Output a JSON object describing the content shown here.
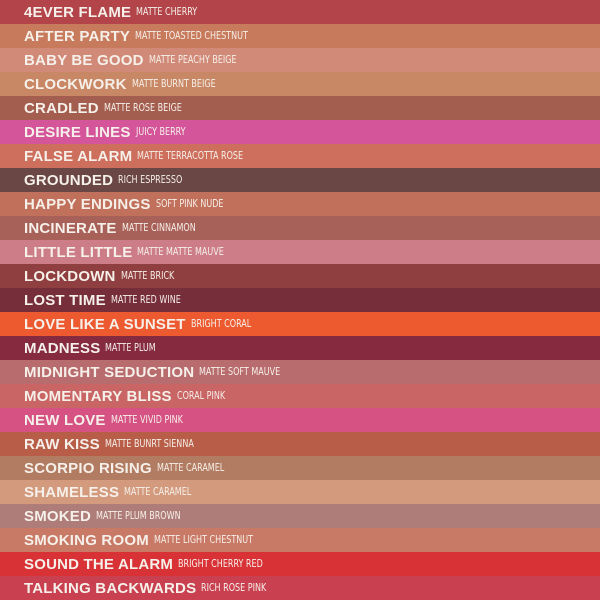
{
  "shades": [
    {
      "name": "4EVER FLAME",
      "description": "MATTE CHERRY",
      "color": "#b2444a"
    },
    {
      "name": "AFTER PARTY",
      "description": "MATTE TOASTED CHESTNUT",
      "color": "#c77a5c"
    },
    {
      "name": "BABY BE GOOD",
      "description": "MATTE PEACHY BEIGE",
      "color": "#d28a78"
    },
    {
      "name": "CLOCKWORK",
      "description": "MATTE BURNT BEIGE",
      "color": "#c98865"
    },
    {
      "name": "CRADLED",
      "description": "MATTE ROSE BEIGE",
      "color": "#a45e50"
    },
    {
      "name": "DESIRE LINES",
      "description": "JUICY BERRY",
      "color": "#d5559a"
    },
    {
      "name": "FALSE ALARM",
      "description": "MATTE TERRACOTTA ROSE",
      "color": "#cd6f5c"
    },
    {
      "name": "GROUNDED",
      "description": "RICH ESPRESSO",
      "color": "#6a4744"
    },
    {
      "name": "HAPPY ENDINGS",
      "description": "SOFT PINK NUDE",
      "color": "#c1705b"
    },
    {
      "name": "INCINERATE",
      "description": "MATTE CINNAMON",
      "color": "#a86158"
    },
    {
      "name": "LITTLE LITTLE",
      "description": "MATTE MATTE MAUVE",
      "color": "#cd7d88"
    },
    {
      "name": "LOCKDOWN",
      "description": "MATTE BRICK",
      "color": "#8f3f3f"
    },
    {
      "name": "LOST TIME",
      "description": "MATTE RED WINE",
      "color": "#772e3b"
    },
    {
      "name": "LOVE LIKE A SUNSET",
      "description": "BRIGHT CORAL",
      "color": "#ee5a30"
    },
    {
      "name": "MADNESS",
      "description": "MATTE PLUM",
      "color": "#852a3f"
    },
    {
      "name": "MIDNIGHT SEDUCTION",
      "description": "MATTE SOFT MAUVE",
      "color": "#b86c6e"
    },
    {
      "name": "MOMENTARY BLISS",
      "description": "CORAL PINK",
      "color": "#c96565"
    },
    {
      "name": "NEW LOVE",
      "description": "MATTE VIVID PINK",
      "color": "#d65283"
    },
    {
      "name": "RAW KISS",
      "description": "MATTE BUNRT SIENNA",
      "color": "#b85e48"
    },
    {
      "name": "SCORPIO RISING",
      "description": "MATTE CARAMEL",
      "color": "#b27c62"
    },
    {
      "name": "SHAMELESS",
      "description": "MATTE CARAMEL",
      "color": "#d39a7e"
    },
    {
      "name": "SMOKED",
      "description": "MATTE PLUM BROWN",
      "color": "#ae7d79"
    },
    {
      "name": "SMOKING ROOM",
      "description": "MATTE LIGHT CHESTNUT",
      "color": "#c97a67"
    },
    {
      "name": "SOUND THE ALARM",
      "description": "BRIGHT CHERRY RED",
      "color": "#d93236"
    },
    {
      "name": "TALKING BACKWARDS",
      "description": "RICH ROSE PINK",
      "color": "#c94150"
    }
  ]
}
